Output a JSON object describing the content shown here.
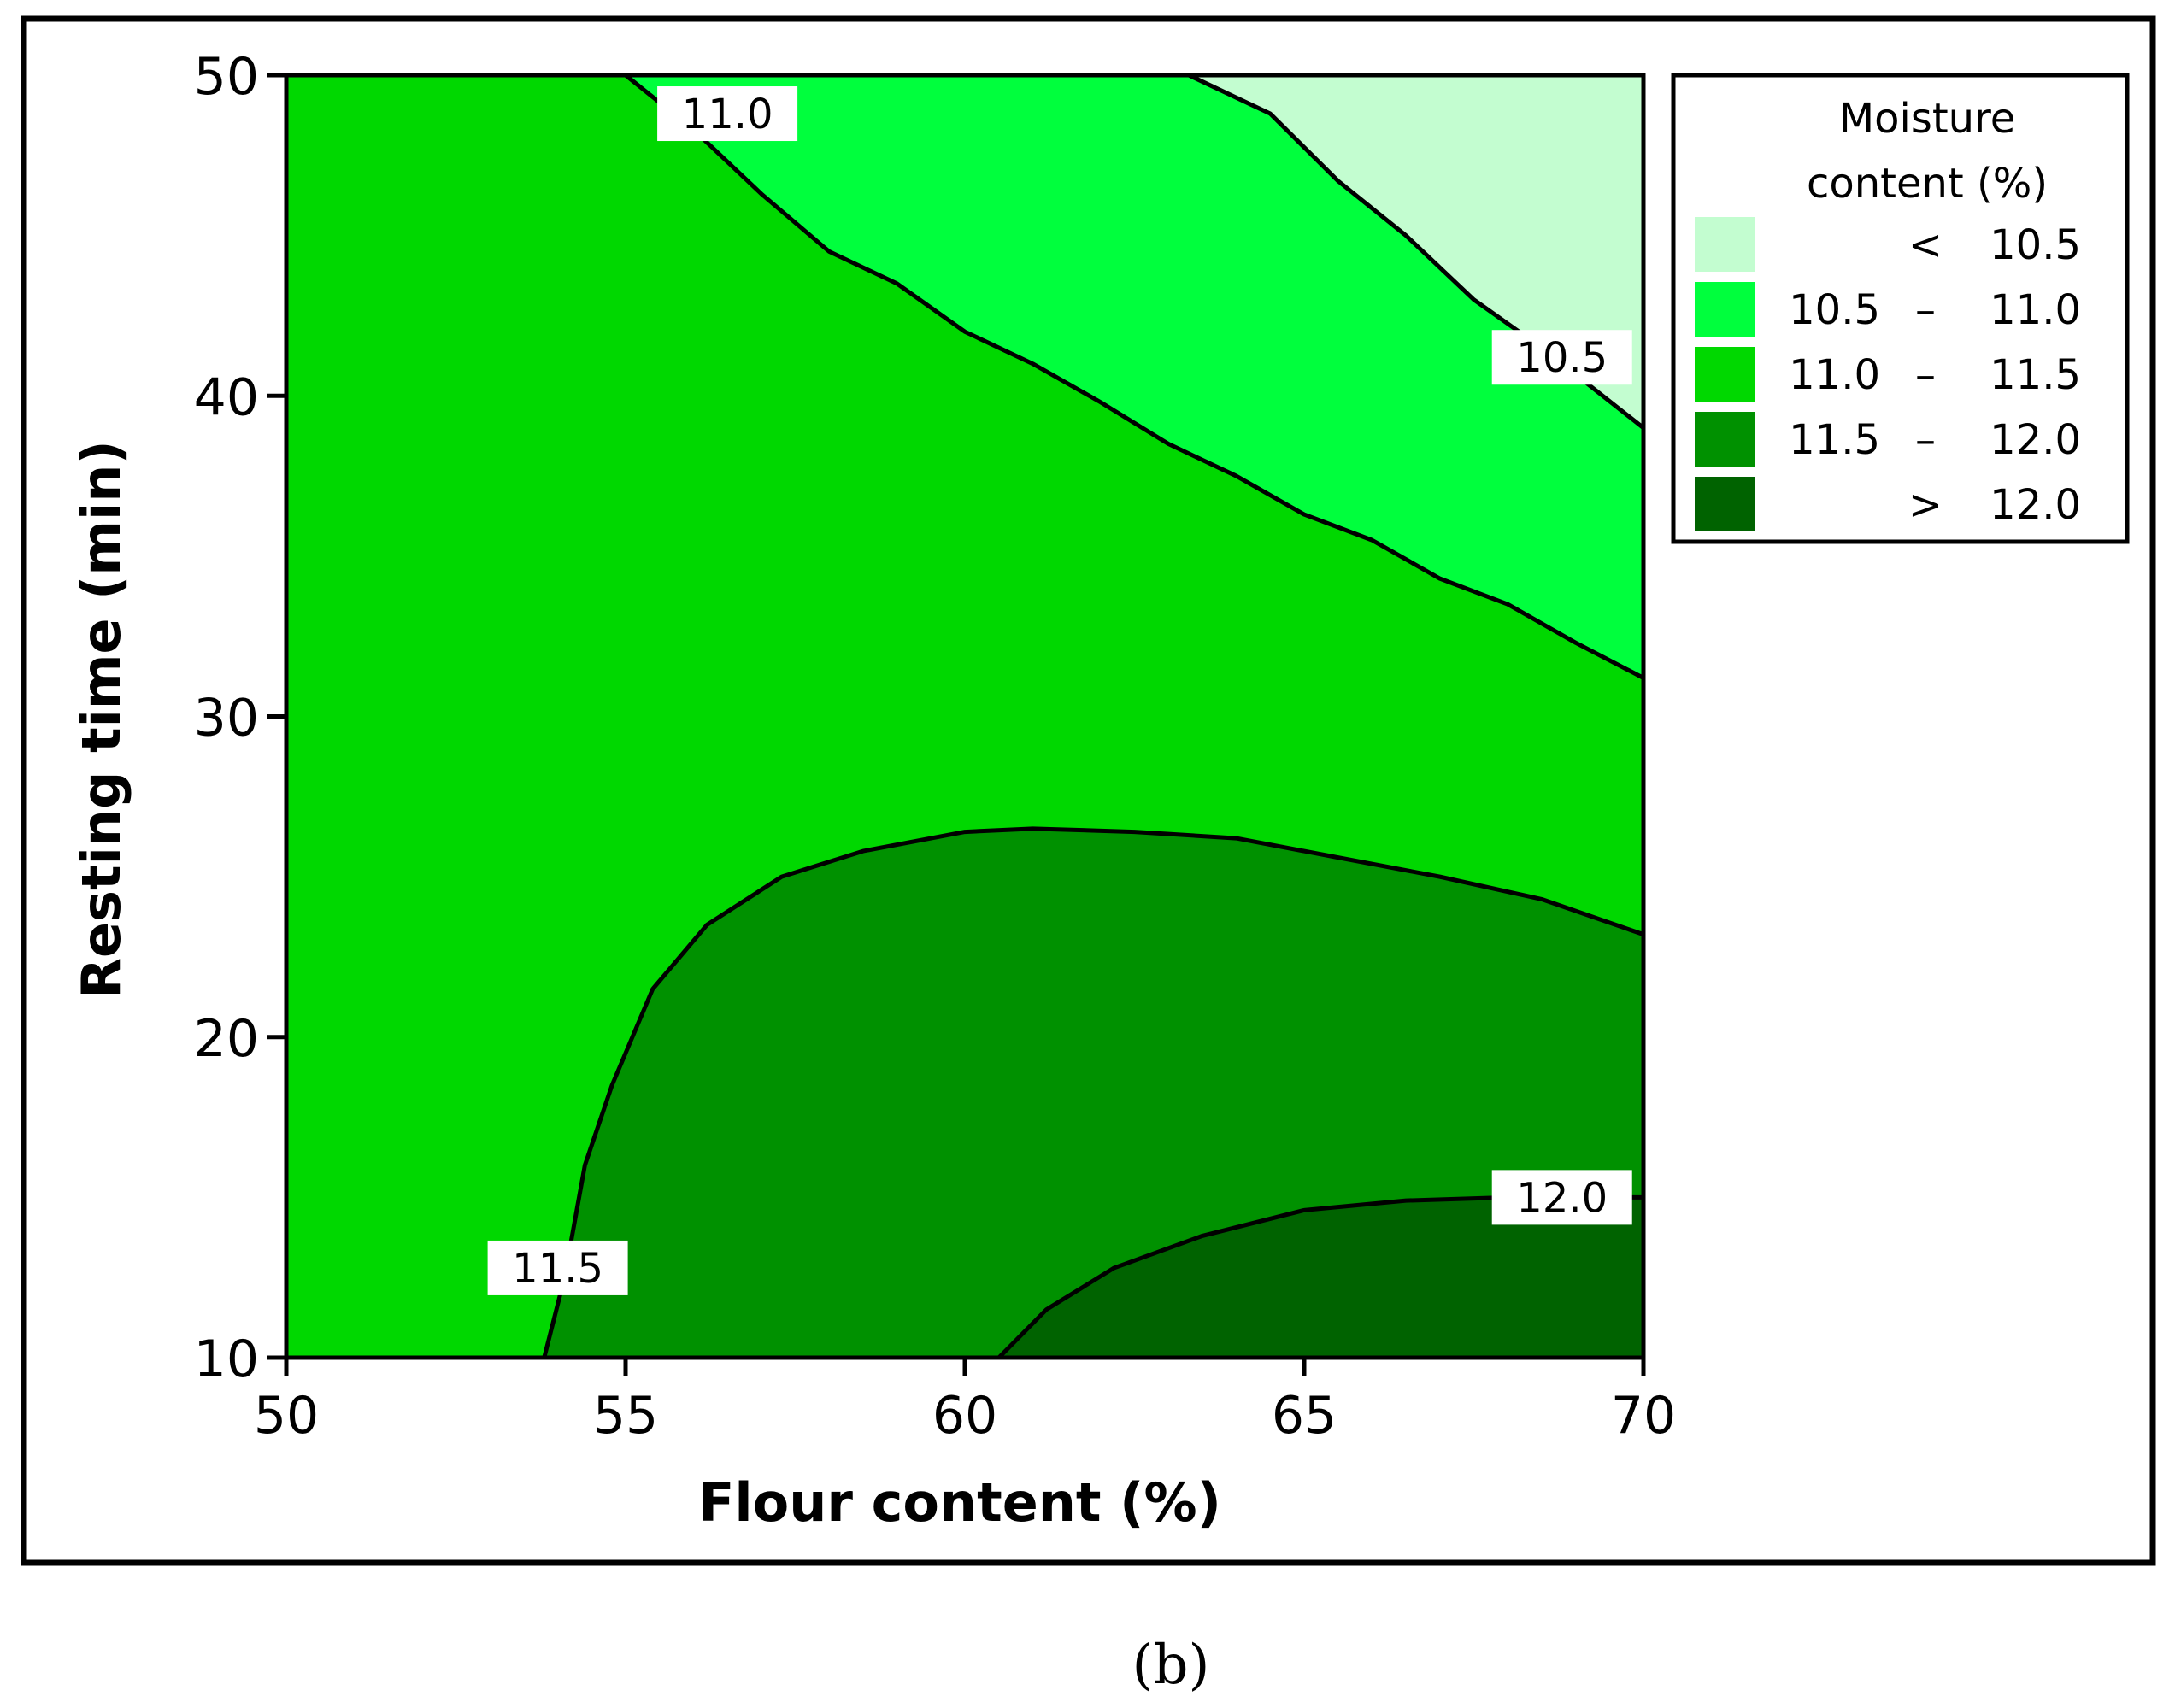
{
  "chart_data": {
    "type": "contour",
    "xlabel": "Flour content (%)",
    "ylabel": "Resting time (min)",
    "xlim": [
      50,
      70
    ],
    "ylim": [
      10,
      50
    ],
    "xticks": [
      "50",
      "55",
      "60",
      "65",
      "70"
    ],
    "yticks": [
      "10",
      "20",
      "30",
      "40",
      "50"
    ],
    "legend": {
      "title_line1": "Moisture",
      "title_line2": "content (%)",
      "placement": "right",
      "entries": [
        {
          "low": "",
          "op": "<",
          "high": "10.5",
          "color": "#c3fdd0"
        },
        {
          "low": "10.5",
          "op": "–",
          "high": "11.0",
          "color": "#00ff3d"
        },
        {
          "low": "11.0",
          "op": "–",
          "high": "11.5",
          "color": "#00d800"
        },
        {
          "low": "11.5",
          "op": "–",
          "high": "12.0",
          "color": "#009100"
        },
        {
          "low": "",
          "op": ">",
          "high": "12.0",
          "color": "#006300"
        }
      ]
    },
    "contours": [
      {
        "level": "10.5",
        "points": [
          [
            63.3,
            50
          ],
          [
            64.5,
            48.8
          ],
          [
            65.5,
            46.7
          ],
          [
            66.5,
            45.0
          ],
          [
            67.5,
            43.0
          ],
          [
            68.5,
            41.5
          ],
          [
            70,
            39.0
          ]
        ],
        "label_at": [
          68.8,
          41.2
        ]
      },
      {
        "level": "11.0",
        "points": [
          [
            55.0,
            50
          ],
          [
            56.0,
            48.3
          ],
          [
            57.0,
            46.3
          ],
          [
            58.0,
            44.5
          ],
          [
            59.0,
            43.5
          ],
          [
            60.0,
            42.0
          ],
          [
            61.0,
            41.0
          ],
          [
            62.0,
            39.8
          ],
          [
            63.0,
            38.5
          ],
          [
            64.0,
            37.5
          ],
          [
            65.0,
            36.3
          ],
          [
            66.0,
            35.5
          ],
          [
            67.0,
            34.3
          ],
          [
            68.0,
            33.5
          ],
          [
            69.0,
            32.3
          ],
          [
            70,
            31.2
          ]
        ],
        "label_at": [
          56.5,
          48.8
        ]
      },
      {
        "level": "11.5",
        "points": [
          [
            53.8,
            10
          ],
          [
            54.1,
            12.5
          ],
          [
            54.4,
            16.0
          ],
          [
            54.8,
            18.5
          ],
          [
            55.4,
            21.5
          ],
          [
            56.2,
            23.5
          ],
          [
            57.3,
            25.0
          ],
          [
            58.5,
            25.8
          ],
          [
            60.0,
            26.4
          ],
          [
            61.0,
            26.5
          ],
          [
            62.5,
            26.4
          ],
          [
            64.0,
            26.2
          ],
          [
            65.5,
            25.6
          ],
          [
            67.0,
            25.0
          ],
          [
            68.5,
            24.3
          ],
          [
            70,
            23.2
          ]
        ],
        "label_at": [
          54.0,
          12.8
        ]
      },
      {
        "level": "12.0",
        "points": [
          [
            60.5,
            10
          ],
          [
            61.2,
            11.5
          ],
          [
            62.2,
            12.8
          ],
          [
            63.5,
            13.8
          ],
          [
            65.0,
            14.6
          ],
          [
            66.5,
            14.9
          ],
          [
            68.0,
            15.0
          ],
          [
            70,
            15.0
          ]
        ],
        "label_at": [
          68.8,
          15.0
        ]
      }
    ]
  },
  "panel_label": "(b)"
}
